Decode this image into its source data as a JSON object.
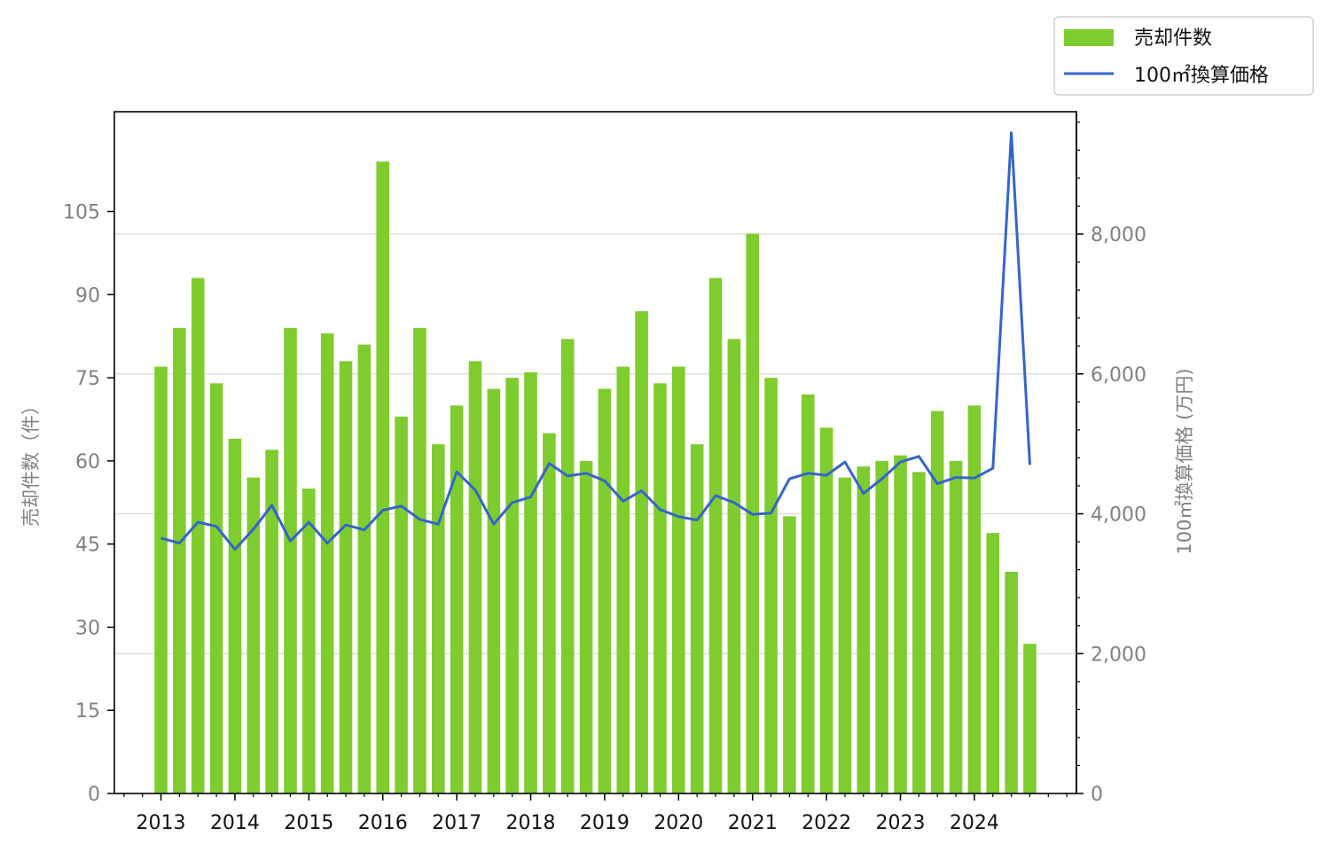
{
  "chart_data": {
    "type": "bar",
    "legend": [
      {
        "label": "売却件数",
        "kind": "bar",
        "color": "#7fcc2f"
      },
      {
        "label": "100㎡換算価格",
        "kind": "line",
        "color": "#3565c8"
      }
    ],
    "legend_position": "top-right",
    "grid": "horizontal (right axis)",
    "left_axis": {
      "label": "売却件数（件）",
      "range": [
        0,
        123
      ],
      "ticks": [
        "0",
        "15",
        "30",
        "45",
        "60",
        "75",
        "90",
        "105"
      ],
      "tick_values": [
        0,
        15,
        30,
        45,
        60,
        75,
        90,
        105
      ]
    },
    "right_axis": {
      "label": "100㎡換算価格 (万円)",
      "range": [
        0,
        9750
      ],
      "ticks": [
        "0",
        "2,000",
        "4,000",
        "6,000",
        "8,000"
      ],
      "tick_values": [
        0,
        2000,
        4000,
        6000,
        8000
      ]
    },
    "x_axis": {
      "tick_labels": [
        "2013",
        "2014",
        "2015",
        "2016",
        "2017",
        "2018",
        "2019",
        "2020",
        "2021",
        "2022",
        "2023",
        "2024"
      ],
      "range": [
        2012.37,
        2025.38
      ]
    },
    "series": [
      {
        "name": "売却件数",
        "axis": "left",
        "x": [
          2013.0,
          2013.25,
          2013.5,
          2013.75,
          2014.0,
          2014.25,
          2014.5,
          2014.75,
          2015.0,
          2015.25,
          2015.5,
          2015.75,
          2016.0,
          2016.25,
          2016.5,
          2016.75,
          2017.0,
          2017.25,
          2017.5,
          2017.75,
          2018.0,
          2018.25,
          2018.5,
          2018.75,
          2019.0,
          2019.25,
          2019.5,
          2019.75,
          2020.0,
          2020.25,
          2020.5,
          2020.75,
          2021.0,
          2021.25,
          2021.5,
          2021.75,
          2022.0,
          2022.25,
          2022.5,
          2022.75,
          2023.0,
          2023.25,
          2023.5,
          2023.75,
          2024.0,
          2024.25,
          2024.5,
          2024.75
        ],
        "values": [
          77,
          84,
          93,
          74,
          64,
          57,
          62,
          84,
          55,
          83,
          78,
          81,
          114,
          68,
          84,
          63,
          70,
          78,
          73,
          75,
          76,
          65,
          82,
          60,
          73,
          77,
          87,
          74,
          77,
          63,
          93,
          82,
          101,
          75,
          50,
          72,
          66,
          57,
          59,
          60,
          61,
          58,
          69,
          60,
          70,
          47,
          40,
          27
        ]
      },
      {
        "name": "100㎡換算価格",
        "axis": "right",
        "x": [
          2013.0,
          2013.25,
          2013.5,
          2013.75,
          2014.0,
          2014.25,
          2014.5,
          2014.75,
          2015.0,
          2015.25,
          2015.5,
          2015.75,
          2016.0,
          2016.25,
          2016.5,
          2016.75,
          2017.0,
          2017.25,
          2017.5,
          2017.75,
          2018.0,
          2018.25,
          2018.5,
          2018.75,
          2019.0,
          2019.25,
          2019.5,
          2019.75,
          2020.0,
          2020.25,
          2020.5,
          2020.75,
          2021.0,
          2021.25,
          2021.5,
          2021.75,
          2022.0,
          2022.25,
          2022.5,
          2022.75,
          2023.0,
          2023.25,
          2023.5,
          2023.75,
          2024.0,
          2024.25,
          2024.5,
          2024.75
        ],
        "values": [
          3650,
          3580,
          3880,
          3820,
          3490,
          3780,
          4120,
          3610,
          3880,
          3580,
          3840,
          3770,
          4050,
          4110,
          3920,
          3850,
          4600,
          4340,
          3850,
          4160,
          4240,
          4720,
          4540,
          4580,
          4470,
          4180,
          4330,
          4060,
          3960,
          3910,
          4260,
          4160,
          3990,
          4010,
          4500,
          4580,
          4550,
          4740,
          4290,
          4500,
          4740,
          4820,
          4430,
          4520,
          4510,
          4650,
          9450,
          4700
        ]
      }
    ]
  }
}
